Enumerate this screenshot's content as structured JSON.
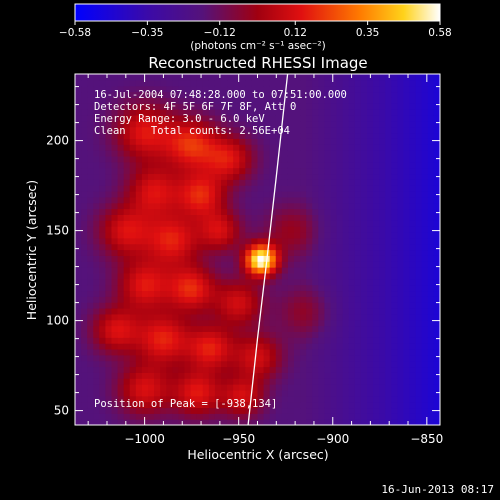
{
  "chart_data": {
    "type": "heatmap",
    "title": "Reconstructed RHESSI Image",
    "xlabel": "Heliocentric X (arcsec)",
    "ylabel": "Heliocentric Y (arcsec)",
    "xlim": [
      -1037,
      -843
    ],
    "ylim": [
      42,
      237
    ],
    "x_ticks": [
      -1000,
      -950,
      -900,
      -850
    ],
    "x_tick_labels": [
      "−1000",
      "−950",
      "−900",
      "−850"
    ],
    "y_ticks": [
      50,
      100,
      150,
      200
    ],
    "y_tick_labels": [
      "50",
      "100",
      "150",
      "200"
    ],
    "colorbar": {
      "range": [
        -0.58,
        0.58
      ],
      "ticks": [
        -0.58,
        -0.35,
        -0.12,
        0.12,
        0.35,
        0.58
      ],
      "tick_labels": [
        "−0.58",
        "−0.35",
        "−0.12",
        "0.12",
        "0.35",
        "0.58"
      ],
      "colormap": "blue-purple-red-yellow-white",
      "unit_label": "(photons cm⁻² s⁻¹ asec⁻²)"
    },
    "info_lines": [
      "16-Jul-2004 07:48:28.000 to 07:51:00.000",
      "Detectors: 4F 5F 6F 7F 8F, Att 0",
      "Energy Range: 3.0 - 6.0 keV",
      "Clean    Total counts: 2.56E+04"
    ],
    "peak_label": "Position of Peak = [-938,134]",
    "peak": {
      "x": -938,
      "y": 134,
      "value": 0.58
    },
    "limb_points": [
      {
        "x": -945,
        "y": 42
      },
      {
        "x": -940,
        "y": 90
      },
      {
        "x": -935,
        "y": 134
      },
      {
        "x": -930,
        "y": 180
      },
      {
        "x": -924,
        "y": 237
      }
    ],
    "background_value": -0.18,
    "emission_blobs": [
      {
        "x": -938,
        "y": 134,
        "amp": 0.78,
        "sigma": 6
      },
      {
        "x": -1000,
        "y": 205,
        "amp": 0.32,
        "sigma": 11
      },
      {
        "x": -975,
        "y": 198,
        "amp": 0.36,
        "sigma": 10
      },
      {
        "x": -955,
        "y": 190,
        "amp": 0.3,
        "sigma": 9
      },
      {
        "x": -995,
        "y": 172,
        "amp": 0.3,
        "sigma": 10
      },
      {
        "x": -970,
        "y": 170,
        "amp": 0.34,
        "sigma": 9
      },
      {
        "x": -1010,
        "y": 150,
        "amp": 0.3,
        "sigma": 10
      },
      {
        "x": -985,
        "y": 145,
        "amp": 0.33,
        "sigma": 10
      },
      {
        "x": -960,
        "y": 150,
        "amp": 0.28,
        "sigma": 8
      },
      {
        "x": -1000,
        "y": 120,
        "amp": 0.32,
        "sigma": 10
      },
      {
        "x": -975,
        "y": 118,
        "amp": 0.35,
        "sigma": 9
      },
      {
        "x": -950,
        "y": 110,
        "amp": 0.28,
        "sigma": 9
      },
      {
        "x": -1015,
        "y": 95,
        "amp": 0.3,
        "sigma": 9
      },
      {
        "x": -990,
        "y": 90,
        "amp": 0.34,
        "sigma": 10
      },
      {
        "x": -965,
        "y": 85,
        "amp": 0.33,
        "sigma": 9
      },
      {
        "x": -940,
        "y": 80,
        "amp": 0.28,
        "sigma": 9
      },
      {
        "x": -1000,
        "y": 62,
        "amp": 0.3,
        "sigma": 10
      },
      {
        "x": -972,
        "y": 60,
        "amp": 0.32,
        "sigma": 9
      },
      {
        "x": -948,
        "y": 58,
        "amp": 0.28,
        "sigma": 8
      },
      {
        "x": -922,
        "y": 150,
        "amp": 0.16,
        "sigma": 10
      },
      {
        "x": -915,
        "y": 105,
        "amp": 0.14,
        "sigma": 10
      }
    ],
    "grid": false
  },
  "footer": {
    "date": "16-Jun-2013 08:17"
  }
}
